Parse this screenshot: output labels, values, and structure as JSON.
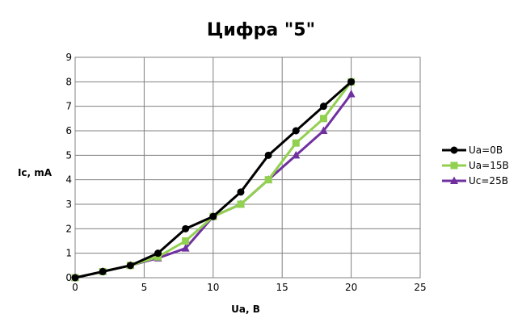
{
  "chart_data": {
    "type": "line",
    "title": "Цифра \"5\"",
    "xlabel": "Ua, B",
    "ylabel": "Ic, mA",
    "xlim": [
      0,
      25
    ],
    "ylim": [
      0,
      9
    ],
    "xticks": [
      0,
      5,
      10,
      15,
      20,
      25
    ],
    "yticks": [
      0,
      1,
      2,
      3,
      4,
      5,
      6,
      7,
      8,
      9
    ],
    "grid": true,
    "legend_position": "right",
    "series": [
      {
        "name": "Ua=0B",
        "color": "#000000",
        "marker": "circle",
        "x": [
          0,
          2,
          4,
          6,
          8,
          10,
          12,
          14,
          16,
          18,
          20
        ],
        "y": [
          0,
          0.25,
          0.5,
          1.0,
          2.0,
          2.5,
          3.5,
          5.0,
          6.0,
          7.0,
          8.0
        ]
      },
      {
        "name": "Ua=15B",
        "color": "#92d050",
        "marker": "square",
        "x": [
          0,
          2,
          4,
          6,
          8,
          10,
          12,
          14,
          16,
          18,
          20
        ],
        "y": [
          0,
          0.25,
          0.5,
          0.85,
          1.5,
          2.5,
          3.0,
          4.0,
          5.5,
          6.5,
          8.0
        ]
      },
      {
        "name": "Uc=25B",
        "color": "#7030a0",
        "marker": "triangle",
        "x": [
          0,
          2,
          4,
          6,
          8,
          10,
          12,
          14,
          16,
          18,
          20
        ],
        "y": [
          0,
          0.25,
          0.5,
          0.8,
          1.2,
          2.5,
          3.0,
          4.0,
          5.0,
          6.0,
          7.5
        ]
      }
    ]
  }
}
